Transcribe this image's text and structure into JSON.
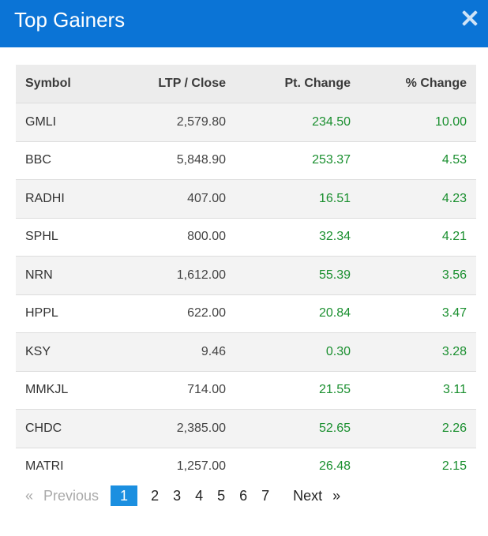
{
  "modal": {
    "title": "Top Gainers",
    "header_color": "#0b74d6"
  },
  "table": {
    "headers": {
      "symbol": "Symbol",
      "ltp": "LTP / Close",
      "pt_change": "Pt. Change",
      "pct_change": "% Change"
    },
    "rows": [
      {
        "symbol": "GMLI",
        "ltp": "2,579.80",
        "pt_change": "234.50",
        "pct_change": "10.00"
      },
      {
        "symbol": "BBC",
        "ltp": "5,848.90",
        "pt_change": "253.37",
        "pct_change": "4.53"
      },
      {
        "symbol": "RADHI",
        "ltp": "407.00",
        "pt_change": "16.51",
        "pct_change": "4.23"
      },
      {
        "symbol": "SPHL",
        "ltp": "800.00",
        "pt_change": "32.34",
        "pct_change": "4.21"
      },
      {
        "symbol": "NRN",
        "ltp": "1,612.00",
        "pt_change": "55.39",
        "pct_change": "3.56"
      },
      {
        "symbol": "HPPL",
        "ltp": "622.00",
        "pt_change": "20.84",
        "pct_change": "3.47"
      },
      {
        "symbol": "KSY",
        "ltp": "9.46",
        "pt_change": "0.30",
        "pct_change": "3.28"
      },
      {
        "symbol": "MMKJL",
        "ltp": "714.00",
        "pt_change": "21.55",
        "pct_change": "3.11"
      },
      {
        "symbol": "CHDC",
        "ltp": "2,385.00",
        "pt_change": "52.65",
        "pct_change": "2.26"
      },
      {
        "symbol": "MATRI",
        "ltp": "1,257.00",
        "pt_change": "26.48",
        "pct_change": "2.15"
      }
    ],
    "gain_color": "#1a8f2f"
  },
  "pagination": {
    "prev_arrow": "«",
    "prev_label": "Previous",
    "pages": [
      "1",
      "2",
      "3",
      "4",
      "5",
      "6",
      "7"
    ],
    "current_page": "1",
    "next_label": "Next",
    "next_arrow": "»"
  }
}
